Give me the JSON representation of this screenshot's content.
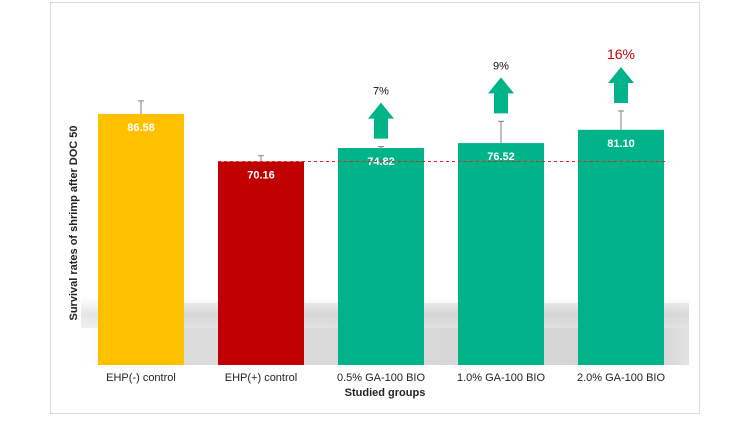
{
  "chart_data": {
    "type": "bar",
    "title": "",
    "xlabel": "Studied groups",
    "ylabel": "Survival rates of shrimp after DOC 50",
    "categories": [
      "EHP(-) control",
      "EHP(+) control",
      "0.5% GA-100 BIO",
      "1.0% GA-100 BIO",
      "2.0% GA-100 BIO"
    ],
    "values": [
      86.58,
      70.16,
      74.82,
      76.52,
      81.1
    ],
    "value_labels": [
      "86.58",
      "70.16",
      "74.82",
      "76.52",
      "81.10"
    ],
    "error": [
      4.5,
      2.0,
      0.5,
      7.5,
      6.5
    ],
    "colors": [
      "#ffc000",
      "#c00000",
      "#00b388",
      "#00b388",
      "#00b388"
    ],
    "ylim": [
      0,
      105
    ],
    "grid": false,
    "reference_line": {
      "value": 70.16,
      "color": "#e02020",
      "style": "dashed"
    },
    "improvements": [
      {
        "category_index": 2,
        "label": "7%",
        "highlight": false
      },
      {
        "category_index": 3,
        "label": "9%",
        "highlight": false
      },
      {
        "category_index": 4,
        "label": "16%",
        "highlight": true
      }
    ],
    "arrow_color": "#00b388",
    "highlight_color": "#c00000"
  }
}
